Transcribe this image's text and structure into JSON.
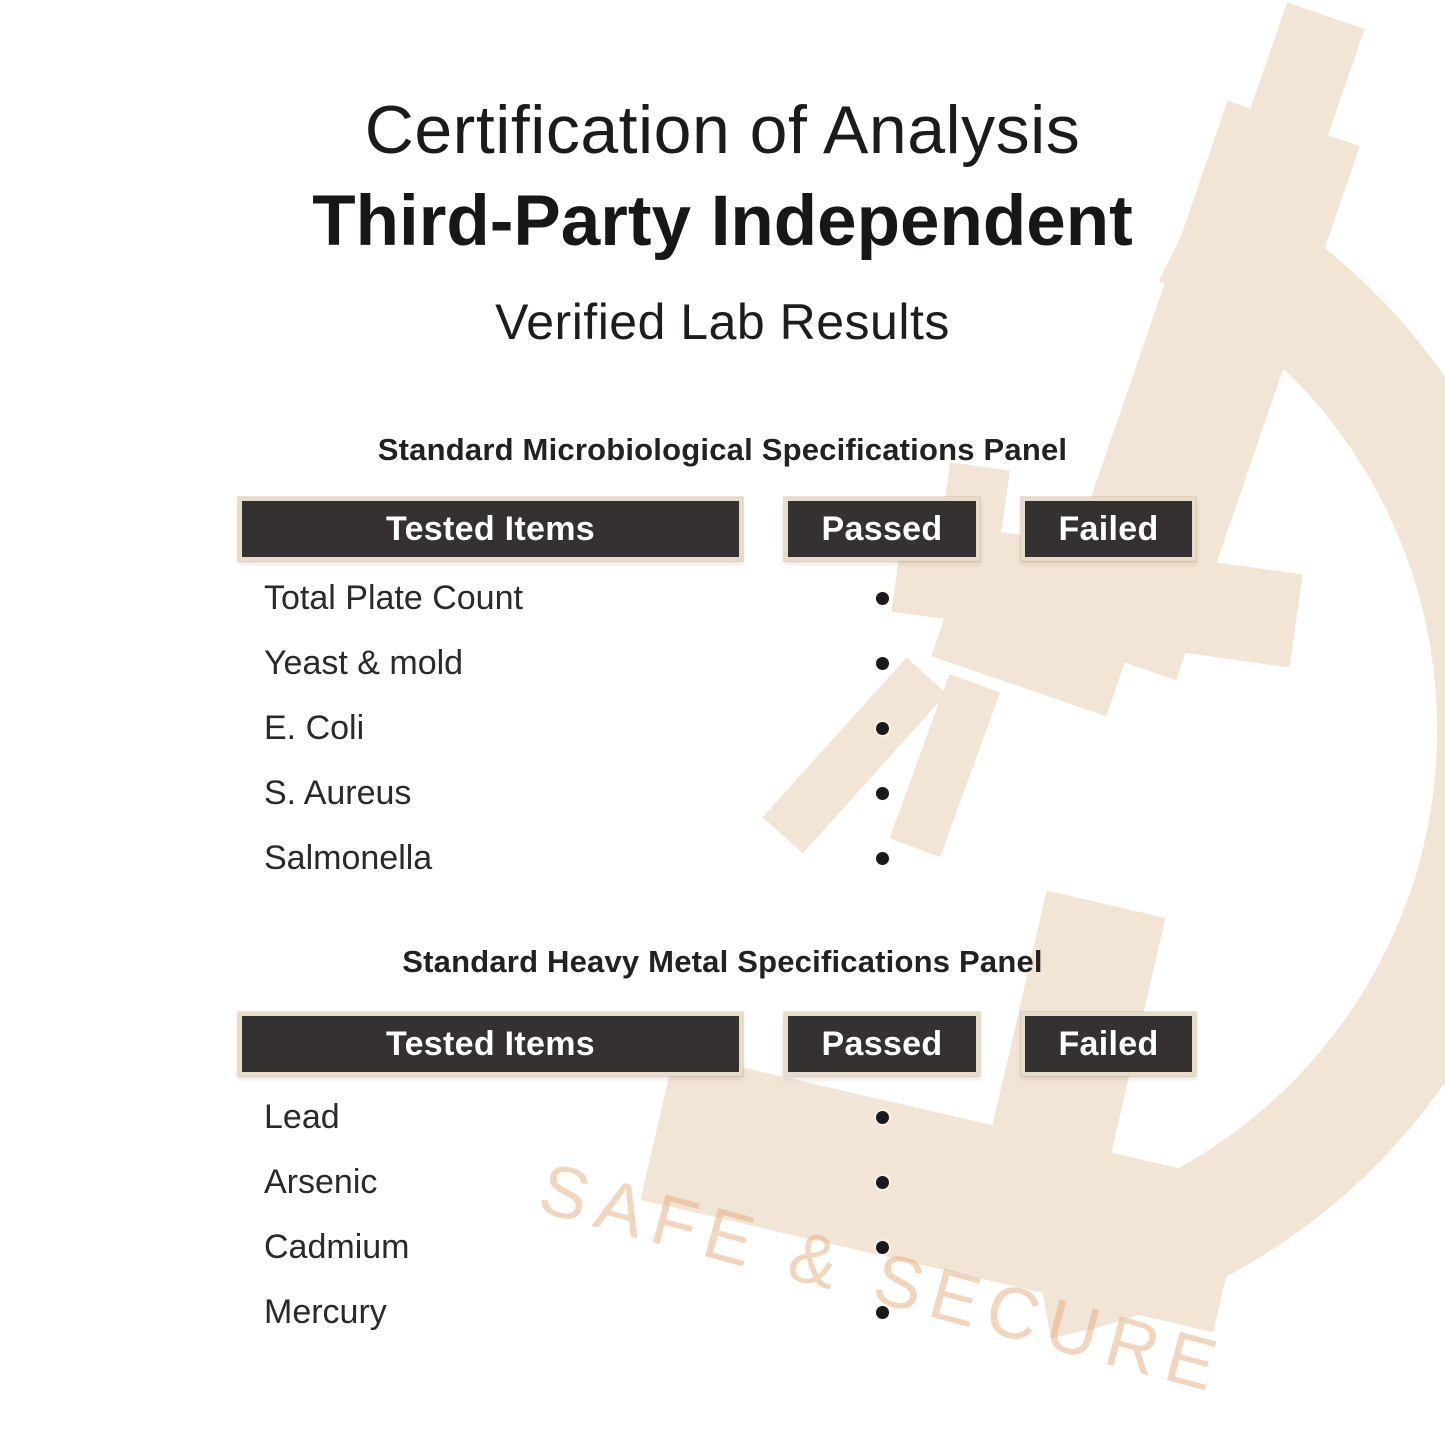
{
  "page": {
    "title_line1": "Certification of Analysis",
    "title_line2": "Third-Party Independent",
    "subtitle": "Verified Lab Results"
  },
  "watermark": {
    "text": "SAFE & SECURE",
    "icon": "microscope-watermark"
  },
  "colors": {
    "background_left": "#d9bf95",
    "background_center": "#f2dfc0",
    "background_right": "#f8e5c7",
    "header_bar": "#343130",
    "header_text": "#ffffff",
    "body_text": "#2c2a28",
    "bullet": "#1a1a1a",
    "watermark_tint": "#d8a877"
  },
  "tables": [
    {
      "section_title": "Standard Microbiological Specifications Panel",
      "columns": [
        "Tested Items",
        "Passed",
        "Failed"
      ],
      "rows": [
        {
          "item": "Total Plate Count",
          "passed": true,
          "failed": false
        },
        {
          "item": "Yeast & mold",
          "passed": true,
          "failed": false
        },
        {
          "item": "E. Coli",
          "passed": true,
          "failed": false
        },
        {
          "item": "S. Aureus",
          "passed": true,
          "failed": false
        },
        {
          "item": "Salmonella",
          "passed": true,
          "failed": false
        }
      ]
    },
    {
      "section_title": "Standard Heavy Metal Specifications Panel",
      "columns": [
        "Tested Items",
        "Passed",
        "Failed"
      ],
      "rows": [
        {
          "item": "Lead",
          "passed": true,
          "failed": false
        },
        {
          "item": "Arsenic",
          "passed": true,
          "failed": false
        },
        {
          "item": "Cadmium",
          "passed": true,
          "failed": false
        },
        {
          "item": "Mercury",
          "passed": true,
          "failed": false
        }
      ]
    }
  ]
}
